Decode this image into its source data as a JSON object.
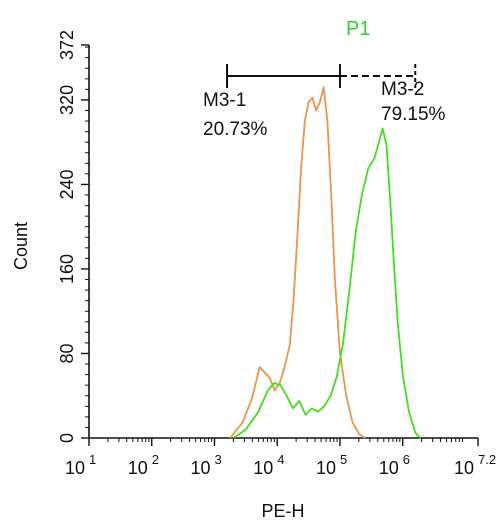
{
  "chart_data": {
    "type": "line",
    "title": "P1",
    "title_color": "#33cc33",
    "xlabel": "PE-H",
    "ylabel": "Count",
    "x_scale": "log",
    "xlim_log10": [
      1,
      7.2
    ],
    "ylim": [
      0,
      372
    ],
    "x_ticks": [
      {
        "v": 1,
        "base": "10",
        "exp": "1"
      },
      {
        "v": 2,
        "base": "10",
        "exp": "2"
      },
      {
        "v": 3,
        "base": "10",
        "exp": "3"
      },
      {
        "v": 4,
        "base": "10",
        "exp": "4"
      },
      {
        "v": 5,
        "base": "10",
        "exp": "5"
      },
      {
        "v": 6,
        "base": "10",
        "exp": "6"
      },
      {
        "v": 7.2,
        "base": "10",
        "exp": "7.2"
      }
    ],
    "y_ticks": [
      0,
      80,
      160,
      240,
      320,
      372
    ],
    "gates": [
      {
        "name": "M3-1",
        "percent": "20.73%",
        "from_log10": 3.2,
        "to_log10": 5.0
      },
      {
        "name": "M3-2",
        "percent": "79.15%",
        "from_log10": 5.0,
        "to_log10": 6.2
      }
    ],
    "series": [
      {
        "color": "#e8954f",
        "x_log10": [
          3.25,
          3.45,
          3.6,
          3.72,
          3.8,
          3.88,
          3.96,
          4.04,
          4.12,
          4.2,
          4.26,
          4.32,
          4.38,
          4.44,
          4.5,
          4.56,
          4.62,
          4.68,
          4.74,
          4.8,
          4.86,
          4.92,
          5.0,
          5.1,
          5.2,
          5.3,
          5.4
        ],
        "y": [
          0,
          15,
          38,
          67,
          62,
          57,
          45,
          52,
          68,
          88,
          130,
          190,
          255,
          300,
          318,
          322,
          310,
          318,
          332,
          300,
          230,
          150,
          80,
          40,
          15,
          4,
          0
        ]
      },
      {
        "color": "#44dd22",
        "x_log10": [
          3.3,
          3.5,
          3.7,
          3.85,
          3.95,
          4.05,
          4.15,
          4.25,
          4.35,
          4.45,
          4.55,
          4.65,
          4.75,
          4.85,
          4.95,
          5.05,
          5.15,
          5.25,
          5.35,
          5.45,
          5.55,
          5.62,
          5.68,
          5.74,
          5.8,
          5.86,
          5.92,
          6.0,
          6.1,
          6.2,
          6.28
        ],
        "y": [
          0,
          8,
          25,
          45,
          52,
          50,
          40,
          28,
          35,
          22,
          28,
          25,
          30,
          40,
          58,
          90,
          140,
          195,
          230,
          255,
          265,
          280,
          293,
          278,
          225,
          165,
          110,
          60,
          25,
          5,
          0
        ]
      }
    ]
  }
}
